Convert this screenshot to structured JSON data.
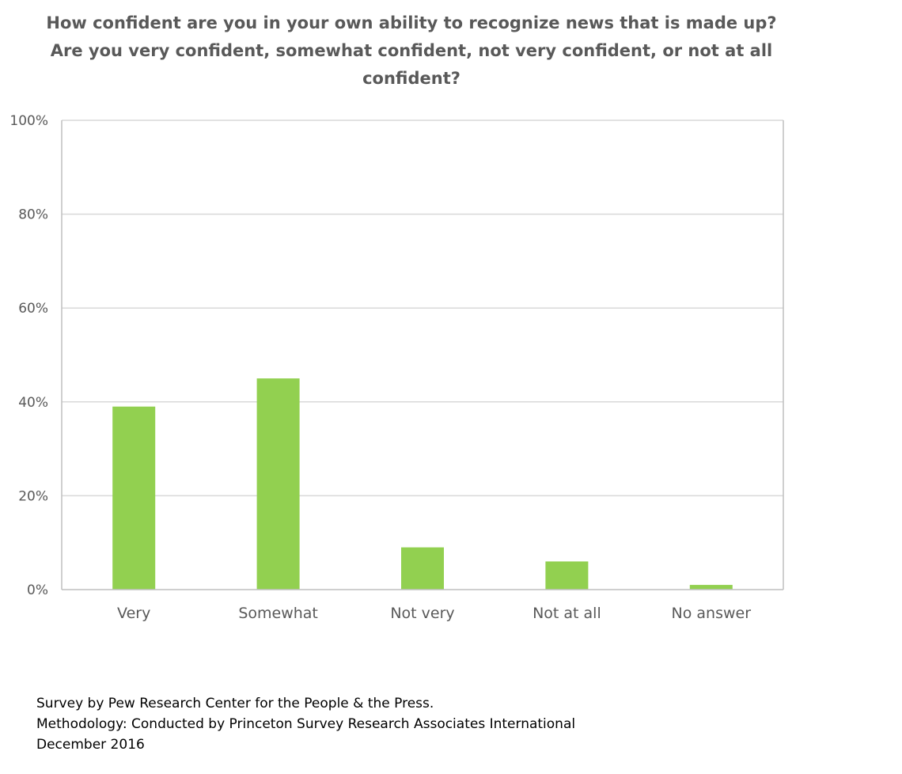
{
  "chart_data": {
    "type": "bar",
    "title_lines": [
      "How confident are you in your own ability to recognize news that is made up?",
      "Are you very confident, somewhat confident, not very confident, or not at all",
      "confident?"
    ],
    "categories": [
      "Very",
      "Somewhat",
      "Not very",
      "Not at all",
      "No answer"
    ],
    "values": [
      39,
      45,
      9,
      6,
      1
    ],
    "ylim": [
      0,
      100
    ],
    "yticks": [
      0,
      20,
      40,
      60,
      80,
      100
    ],
    "ytick_labels": [
      "0%",
      "20%",
      "40%",
      "60%",
      "80%",
      "100%"
    ],
    "xlabel": "",
    "ylabel": "",
    "grid": true,
    "legend": "none",
    "colors": {
      "bar": "#92d050",
      "grid": "#d9d9d9",
      "axis": "#bfbfbf",
      "text": "#595959"
    }
  },
  "footer": {
    "line1": "Survey by Pew Research Center for the People & the Press.",
    "line2": "Methodology: Conducted by Princeton Survey Research Associates International",
    "line3": "December 2016"
  }
}
